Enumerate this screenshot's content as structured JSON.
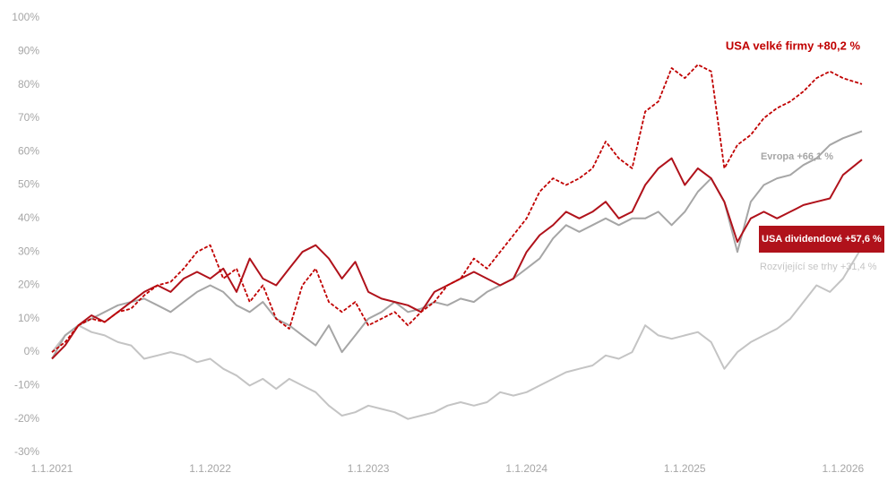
{
  "chart_data": {
    "type": "line",
    "xlim": [
      2021,
      2026.12
    ],
    "xticks": [
      {
        "value": 2021,
        "label": "1.1.2021"
      },
      {
        "value": 2022,
        "label": "1.1.2022"
      },
      {
        "value": 2023,
        "label": "1.1.2023"
      },
      {
        "value": 2024,
        "label": "1.1.2024"
      },
      {
        "value": 2025,
        "label": "1.1.2025"
      },
      {
        "value": 2026,
        "label": "1.1.2026"
      }
    ],
    "ylim": [
      -30,
      100
    ],
    "yticks": [
      {
        "value": -30,
        "label": "-30%"
      },
      {
        "value": -20,
        "label": "-20%"
      },
      {
        "value": -10,
        "label": "-10%"
      },
      {
        "value": 0,
        "label": "0%"
      },
      {
        "value": 10,
        "label": "10%"
      },
      {
        "value": 20,
        "label": "20%"
      },
      {
        "value": 30,
        "label": "30%"
      },
      {
        "value": 40,
        "label": "40%"
      },
      {
        "value": 50,
        "label": "50%"
      },
      {
        "value": 60,
        "label": "60%"
      },
      {
        "value": 70,
        "label": "70%"
      },
      {
        "value": 80,
        "label": "80%"
      },
      {
        "value": 90,
        "label": "90%"
      },
      {
        "value": 100,
        "label": "100%"
      }
    ],
    "x": [
      2021,
      2021.083,
      2021.167,
      2021.25,
      2021.333,
      2021.417,
      2021.5,
      2021.583,
      2021.667,
      2021.75,
      2021.833,
      2021.917,
      2022,
      2022.083,
      2022.167,
      2022.25,
      2022.333,
      2022.417,
      2022.5,
      2022.583,
      2022.667,
      2022.75,
      2022.833,
      2022.917,
      2023,
      2023.083,
      2023.167,
      2023.25,
      2023.333,
      2023.417,
      2023.5,
      2023.583,
      2023.667,
      2023.75,
      2023.833,
      2023.917,
      2024,
      2024.083,
      2024.167,
      2024.25,
      2024.333,
      2024.417,
      2024.5,
      2024.583,
      2024.667,
      2024.75,
      2024.833,
      2024.917,
      2025,
      2025.083,
      2025.167,
      2025.25,
      2025.333,
      2025.417,
      2025.5,
      2025.583,
      2025.667,
      2025.75,
      2025.833,
      2025.917,
      2026,
      2026.12
    ],
    "series": [
      {
        "label": "Rozvíjející se trhy +31,4 %",
        "color": "#c4c4c4",
        "dashed": false,
        "values": [
          0,
          5,
          8,
          6,
          5,
          3,
          2,
          -2,
          -1,
          0,
          -1,
          -3,
          -2,
          -5,
          -7,
          -10,
          -8,
          -11,
          -8,
          -10,
          -12,
          -16,
          -19,
          -18,
          -16,
          -17,
          -18,
          -20,
          -19,
          -18,
          -16,
          -15,
          -16,
          -15,
          -12,
          -13,
          -12,
          -10,
          -8,
          -6,
          -5,
          -4,
          -1,
          -2,
          0,
          8,
          5,
          4,
          5,
          6,
          3,
          -5,
          0,
          3,
          5,
          7,
          10,
          15,
          20,
          18,
          22,
          31.4
        ]
      },
      {
        "label": "Evropa +66,1 %",
        "color": "#a6a6a6",
        "dashed": false,
        "values": [
          -2,
          5,
          8,
          10,
          12,
          14,
          15,
          16,
          14,
          12,
          15,
          18,
          20,
          18,
          14,
          12,
          15,
          10,
          8,
          5,
          2,
          8,
          0,
          5,
          10,
          12,
          15,
          12,
          13,
          15,
          14,
          16,
          15,
          18,
          20,
          22,
          25,
          28,
          34,
          38,
          36,
          38,
          40,
          38,
          40,
          40,
          42,
          38,
          42,
          48,
          52,
          45,
          30,
          45,
          50,
          52,
          53,
          56,
          58,
          62,
          64,
          66.1
        ]
      },
      {
        "label": "USA dividendové +57,6 %",
        "color": "#b0121b",
        "dashed": false,
        "values": [
          -2,
          2,
          8,
          11,
          9,
          12,
          15,
          18,
          20,
          18,
          22,
          24,
          22,
          25,
          18,
          28,
          22,
          20,
          25,
          30,
          32,
          28,
          22,
          27,
          18,
          16,
          15,
          14,
          12,
          18,
          20,
          22,
          24,
          22,
          20,
          22,
          30,
          35,
          38,
          42,
          40,
          42,
          45,
          40,
          42,
          50,
          55,
          58,
          50,
          55,
          52,
          45,
          33,
          40,
          42,
          40,
          42,
          44,
          45,
          46,
          53,
          57.6
        ]
      },
      {
        "label": "USA velké firmy +80,2 %",
        "color": "#c00000",
        "dashed": true,
        "values": [
          0,
          3,
          8,
          10,
          9,
          12,
          13,
          17,
          20,
          21,
          25,
          30,
          32,
          22,
          25,
          15,
          20,
          10,
          7,
          20,
          25,
          15,
          12,
          15,
          8,
          10,
          12,
          8,
          12,
          15,
          20,
          22,
          28,
          25,
          30,
          35,
          40,
          48,
          52,
          50,
          52,
          55,
          63,
          58,
          55,
          72,
          75,
          85,
          82,
          86,
          84,
          55,
          62,
          65,
          70,
          73,
          75,
          78,
          82,
          84,
          82,
          80.2
        ]
      }
    ]
  }
}
